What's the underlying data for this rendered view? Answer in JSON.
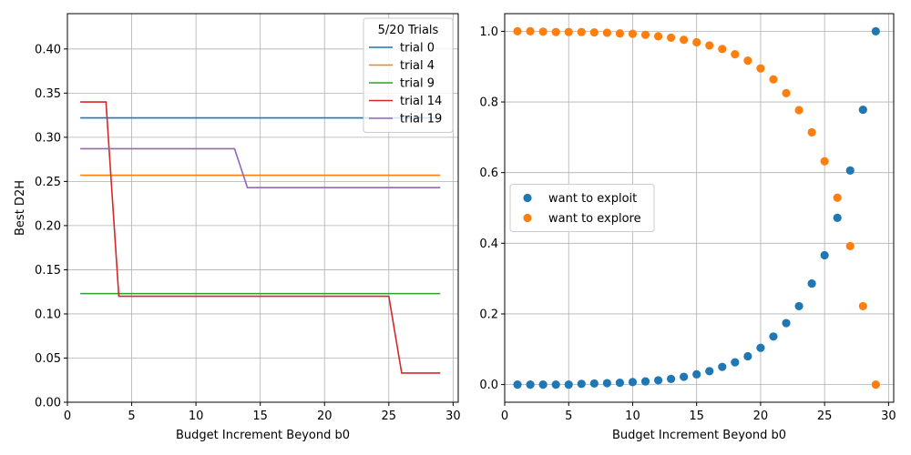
{
  "chart_data": [
    {
      "type": "line",
      "xlabel": "Budget Increment Beyond b0",
      "ylabel": "Best D2H",
      "xlim": [
        0,
        30.4
      ],
      "ylim": [
        0,
        0.44
      ],
      "xticks": [
        0,
        5,
        10,
        15,
        20,
        25,
        30
      ],
      "yticks": [
        0.0,
        0.05,
        0.1,
        0.15,
        0.2,
        0.25,
        0.3,
        0.35,
        0.4
      ],
      "ytick_labels": [
        "0.00",
        "0.05",
        "0.10",
        "0.15",
        "0.20",
        "0.25",
        "0.30",
        "0.35",
        "0.40"
      ],
      "grid": true,
      "legend": {
        "title": "5/20 Trials",
        "placement": "top-right"
      },
      "series": [
        {
          "name": "trial 0",
          "color": "#1f77b4",
          "x": [
            1,
            29
          ],
          "y": [
            0.322,
            0.322
          ]
        },
        {
          "name": "trial 4",
          "color": "#ff7f0e",
          "x": [
            1,
            29
          ],
          "y": [
            0.257,
            0.257
          ]
        },
        {
          "name": "trial 9",
          "color": "#2ca02c",
          "x": [
            1,
            29
          ],
          "y": [
            0.123,
            0.123
          ]
        },
        {
          "name": "trial 14",
          "color": "#d62728",
          "x": [
            1,
            3,
            4,
            25,
            26,
            29
          ],
          "y": [
            0.34,
            0.34,
            0.12,
            0.12,
            0.033,
            0.033
          ]
        },
        {
          "name": "trial 19",
          "color": "#9467bd",
          "x": [
            1,
            13,
            14,
            29
          ],
          "y": [
            0.287,
            0.287,
            0.243,
            0.243
          ]
        }
      ]
    },
    {
      "type": "scatter",
      "xlabel": "Budget Increment Beyond b0",
      "ylabel": "",
      "xlim": [
        0,
        30.4
      ],
      "ylim": [
        -0.05,
        1.05
      ],
      "xticks": [
        0,
        5,
        10,
        15,
        20,
        25,
        30
      ],
      "yticks": [
        0.0,
        0.2,
        0.4,
        0.6,
        0.8,
        1.0
      ],
      "ytick_labels": [
        "0.0",
        "0.2",
        "0.4",
        "0.6",
        "0.8",
        "1.0"
      ],
      "grid": true,
      "legend": {
        "placement": "center-left"
      },
      "series": [
        {
          "name": "want to exploit",
          "color": "#1f77b4",
          "x": [
            1,
            2,
            3,
            4,
            5,
            6,
            7,
            8,
            9,
            10,
            11,
            12,
            13,
            14,
            15,
            16,
            17,
            18,
            19,
            20,
            21,
            22,
            23,
            24,
            25,
            26,
            27,
            28,
            29
          ],
          "y": [
            0.0,
            0.0,
            0.0,
            0.0,
            0.0,
            0.002,
            0.003,
            0.004,
            0.005,
            0.007,
            0.009,
            0.012,
            0.016,
            0.022,
            0.029,
            0.038,
            0.05,
            0.063,
            0.08,
            0.104,
            0.136,
            0.174,
            0.222,
            0.286,
            0.366,
            0.472,
            0.606,
            0.778,
            1.0
          ]
        },
        {
          "name": "want to explore",
          "color": "#ff7f0e",
          "x": [
            1,
            2,
            3,
            4,
            5,
            6,
            7,
            8,
            9,
            10,
            11,
            12,
            13,
            14,
            15,
            16,
            17,
            18,
            19,
            20,
            21,
            22,
            23,
            24,
            25,
            26,
            27,
            28,
            29
          ],
          "y": [
            1.0,
            1.0,
            0.999,
            0.998,
            0.998,
            0.998,
            0.997,
            0.996,
            0.994,
            0.993,
            0.99,
            0.986,
            0.982,
            0.976,
            0.969,
            0.96,
            0.95,
            0.935,
            0.917,
            0.895,
            0.864,
            0.825,
            0.777,
            0.714,
            0.632,
            0.529,
            0.392,
            0.222,
            0.0
          ]
        }
      ]
    }
  ]
}
